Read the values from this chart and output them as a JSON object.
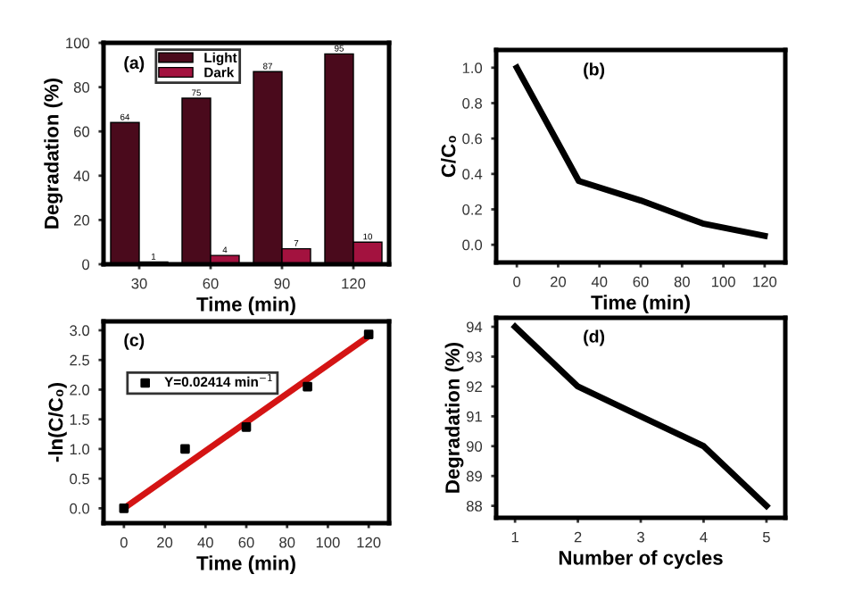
{
  "chart_data": [
    {
      "type": "bar",
      "categories": [
        "30",
        "60",
        "90",
        "120"
      ],
      "xlabel": "Time (min)",
      "ylabel": "Degradation (%)",
      "ylim": [
        0,
        100
      ],
      "yticks": [
        0,
        20,
        40,
        60,
        80,
        100
      ],
      "legend": "top left",
      "data_labels": true,
      "annotations": [
        "(a)"
      ],
      "series": [
        {
          "name": "Light",
          "color": "#4a0a1c",
          "values": [
            64,
            75,
            87,
            95
          ]
        },
        {
          "name": "Dark",
          "color": "#a3123f",
          "values": [
            1,
            4,
            7,
            10
          ]
        }
      ]
    },
    {
      "type": "line",
      "xlabel": "Time (min)",
      "ylabel": "C/C₀",
      "xlim": [
        -10,
        130
      ],
      "xticks": [
        0,
        20,
        40,
        60,
        80,
        100,
        120
      ],
      "ylim": [
        -0.1,
        1.1
      ],
      "yticks": [
        {
          "value": 0,
          "label": "0.0"
        },
        0.2,
        0.4,
        0.6,
        0.8,
        {
          "value": 1,
          "label": "1.0"
        }
      ],
      "annotations": [
        "(b)"
      ],
      "series": [
        {
          "color": "#000000",
          "x": [
            0,
            30,
            60,
            90,
            120
          ],
          "values": [
            1.0,
            0.36,
            0.25,
            0.12,
            0.05
          ]
        }
      ]
    },
    {
      "type": "scatter",
      "xlabel": "Time (min)",
      "ylabel": "-ln(C/C₀)",
      "xlim": [
        -10,
        130
      ],
      "xticks": [
        0,
        20,
        40,
        60,
        80,
        100,
        120
      ],
      "ylim": [
        -0.25,
        3.15
      ],
      "yticks": [
        {
          "value": 0,
          "label": "0.0"
        },
        0.5,
        {
          "value": 1,
          "label": "1.0"
        },
        1.5,
        {
          "value": 2,
          "label": "2.0"
        },
        2.5,
        {
          "value": 3,
          "label": "3.0"
        }
      ],
      "legend": "top left",
      "annotations": [
        "(c)"
      ],
      "series": [
        {
          "name": "Y=0.02414 min$^{−1}$",
          "type": "scatter",
          "marker": "square",
          "color": "#000000",
          "x": [
            0,
            30,
            60,
            90,
            120
          ],
          "values": [
            0.0,
            1.0,
            1.37,
            2.05,
            2.93
          ]
        },
        {
          "type": "line",
          "color": "#d41414",
          "x": [
            0,
            120
          ],
          "values": [
            0.0,
            2.9
          ]
        }
      ]
    },
    {
      "type": "line",
      "xlabel": "Number of cycles",
      "ylabel": "Degradation (%)",
      "xlim": [
        0.7,
        5.3
      ],
      "xticks": [
        1,
        2,
        3,
        4,
        5
      ],
      "ylim": [
        87.6,
        94.3
      ],
      "yticks": [
        88,
        89,
        90,
        91,
        92,
        93,
        94
      ],
      "annotations": [
        "(d)"
      ],
      "series": [
        {
          "color": "#000000",
          "x": [
            1,
            2,
            3,
            4,
            5
          ],
          "values": [
            94,
            92,
            91,
            90,
            88
          ]
        }
      ]
    }
  ]
}
